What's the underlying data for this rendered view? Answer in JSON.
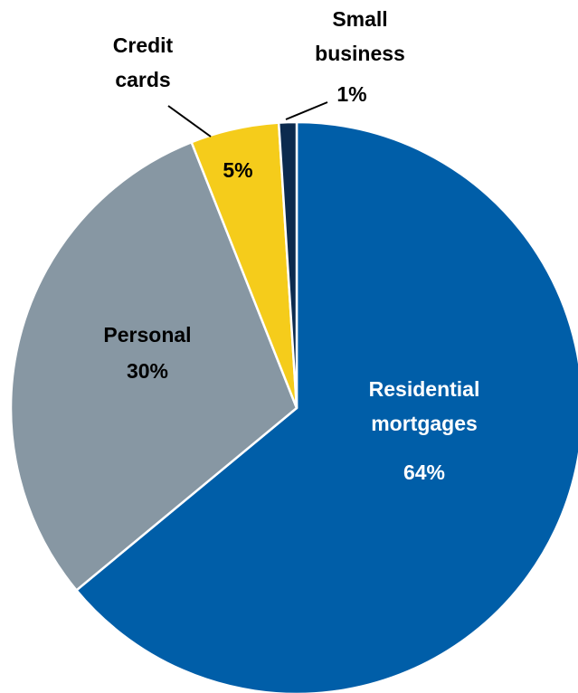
{
  "chart_data": {
    "type": "pie",
    "slices": [
      {
        "label_lines": [
          "Residential",
          "mortgages"
        ],
        "value": 64,
        "value_label": "64%",
        "color": "#005EA8",
        "label_color": "#FFFFFF"
      },
      {
        "label_lines": [
          "Personal"
        ],
        "value": 30,
        "value_label": "30%",
        "color": "#8797A3",
        "label_color": "#000000"
      },
      {
        "label_lines": [
          "Credit",
          "cards"
        ],
        "value": 5,
        "value_label": "5%",
        "color": "#F5CC1B",
        "label_color": "#000000"
      },
      {
        "label_lines": [
          "Small",
          "business"
        ],
        "value": 1,
        "value_label": "1%",
        "color": "#0B2A4E",
        "label_color": "#000000"
      }
    ],
    "start_angle": "12 o'clock",
    "direction": "clockwise"
  }
}
